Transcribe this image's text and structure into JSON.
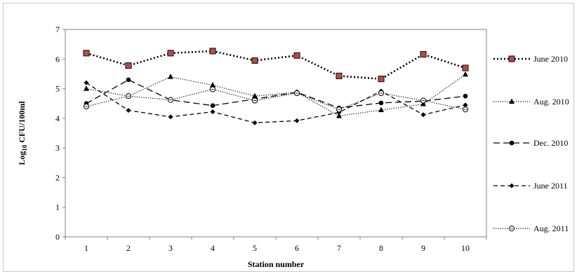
{
  "chart_data": {
    "type": "line",
    "title": "",
    "xlabel": "Station number",
    "ylabel_main": "Log",
    "ylabel_sub": "10",
    "ylabel_rest": " CFU/100ml",
    "categories": [
      "1",
      "2",
      "3",
      "4",
      "5",
      "6",
      "7",
      "8",
      "9",
      "10"
    ],
    "ylim": [
      0,
      7
    ],
    "yticks": [
      "0",
      "1",
      "2",
      "3",
      "4",
      "5",
      "6",
      "7"
    ],
    "grid": false,
    "legend_position": "right",
    "series": [
      {
        "name": "June 2010",
        "values": [
          6.2,
          5.78,
          6.2,
          6.27,
          5.95,
          6.12,
          5.43,
          5.33,
          6.16,
          5.7
        ],
        "marker": "square",
        "dash": "dotted-heavy",
        "marker_fill": "#b94a48"
      },
      {
        "name": "Aug. 2010",
        "values": [
          5.0,
          4.75,
          5.4,
          5.12,
          4.75,
          4.88,
          4.08,
          4.28,
          4.48,
          5.48
        ],
        "marker": "triangle",
        "dash": "dotted",
        "marker_fill": "#000000"
      },
      {
        "name": "Dec. 2010",
        "values": [
          4.5,
          5.3,
          4.62,
          4.43,
          4.65,
          4.88,
          4.35,
          4.52,
          4.58,
          4.75
        ],
        "marker": "circle",
        "dash": "long-dash",
        "marker_fill": "#000000"
      },
      {
        "name": "June 2011",
        "values": [
          5.2,
          4.27,
          4.05,
          4.22,
          3.85,
          3.92,
          4.2,
          4.92,
          4.12,
          4.45
        ],
        "marker": "diamond",
        "dash": "dash",
        "marker_fill": "#000000"
      },
      {
        "name": "Aug. 2011",
        "values": [
          4.4,
          4.75,
          4.62,
          4.98,
          4.6,
          4.85,
          4.3,
          4.85,
          4.6,
          4.3
        ],
        "marker": "open-circle",
        "dash": "dotted",
        "marker_fill": "#ffffff"
      }
    ]
  }
}
